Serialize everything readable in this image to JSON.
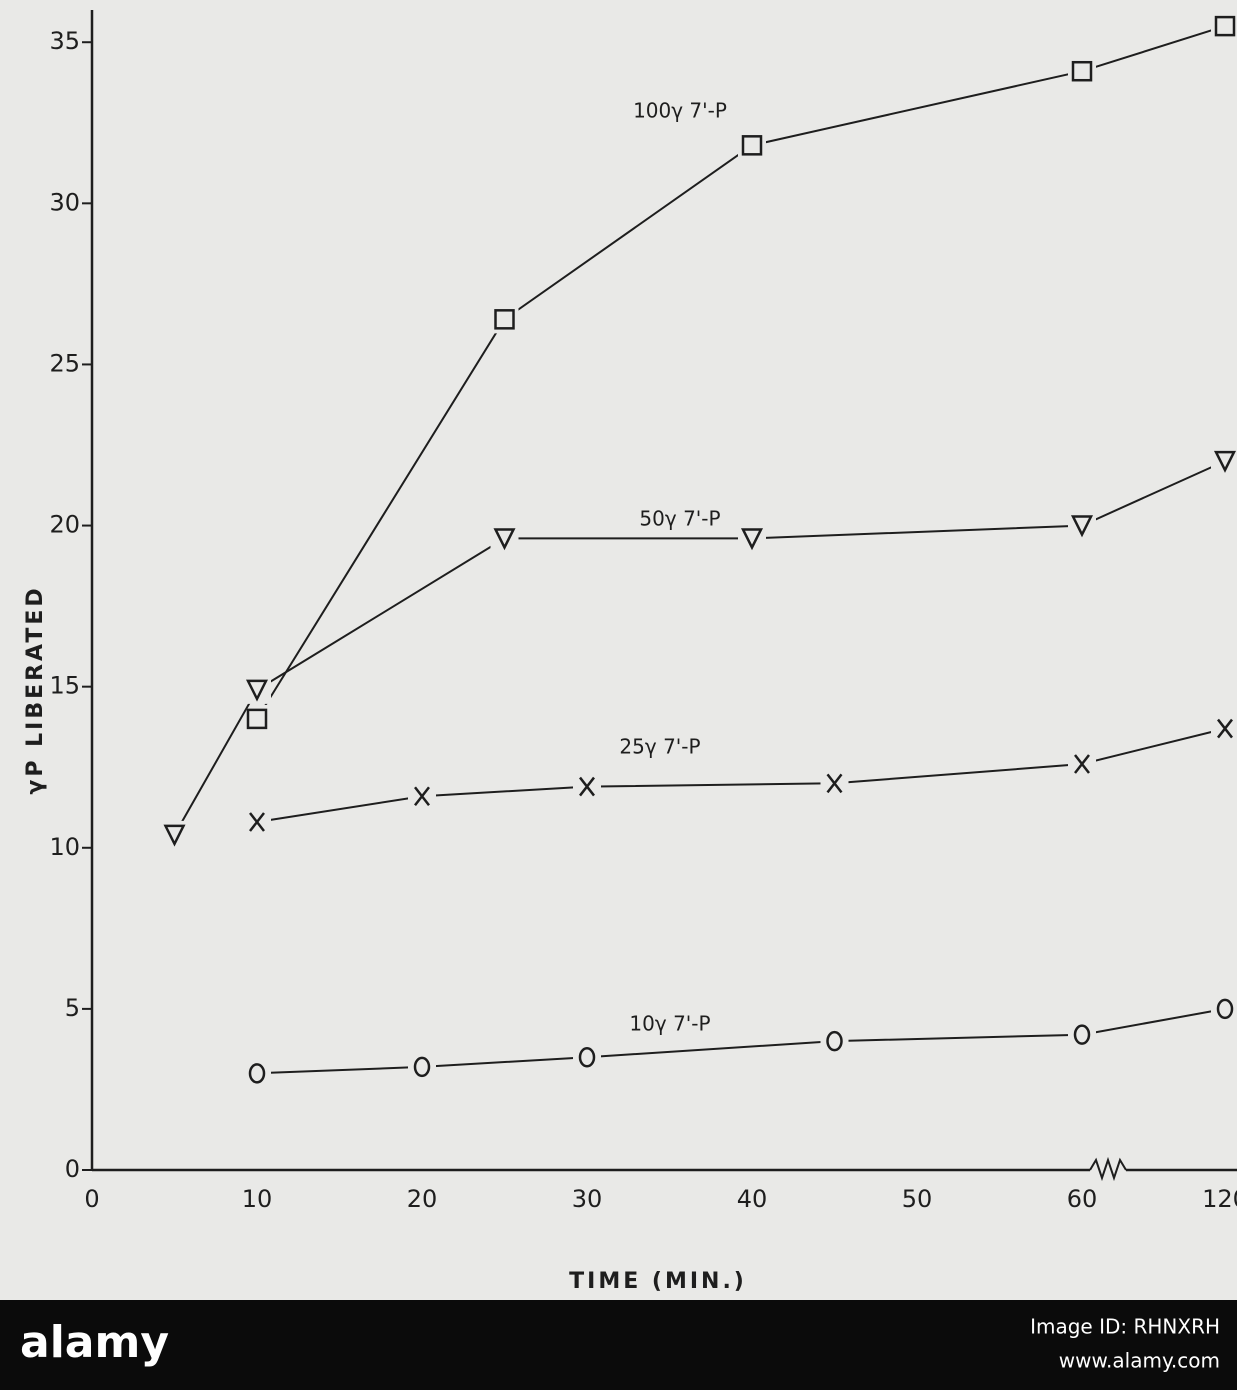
{
  "chart_data": {
    "type": "line",
    "x_label": "TIME (MIN.)",
    "y_label": "γP LIBERATED",
    "xlim": [
      0,
      120
    ],
    "xticks": [
      0,
      10,
      20,
      30,
      40,
      50,
      60,
      120
    ],
    "axis_break": true,
    "ylim": [
      0,
      36
    ],
    "yticks": [
      0,
      5,
      10,
      15,
      20,
      25,
      30,
      35
    ],
    "grid": false,
    "series": [
      {
        "name": "100γ 7'-P",
        "color": "#1e1e1e",
        "marker": "square",
        "x": [
          10,
          25,
          40,
          60,
          120
        ],
        "values": [
          14.0,
          26.4,
          31.8,
          34.1,
          35.5
        ]
      },
      {
        "name": "50γ 7'-P",
        "color": "#1e1e1e",
        "marker": "triangle",
        "x": [
          5,
          10,
          25,
          40,
          60,
          120
        ],
        "values": [
          10.4,
          14.9,
          19.6,
          19.6,
          20.0,
          22.0
        ]
      },
      {
        "name": "25γ 7'-P",
        "color": "#1e1e1e",
        "marker": "x",
        "x": [
          10,
          20,
          30,
          45,
          60,
          120
        ],
        "values": [
          10.8,
          11.6,
          11.9,
          12.0,
          12.6,
          13.7
        ]
      },
      {
        "name": "10γ 7'-P",
        "color": "#1e1e1e",
        "marker": "circle",
        "x": [
          10,
          20,
          30,
          45,
          60,
          120
        ],
        "values": [
          3.0,
          3.2,
          3.5,
          4.0,
          4.2,
          5.0
        ]
      }
    ]
  },
  "watermark": {
    "brand": "alamy",
    "image_id": "Image ID: RHNXRH",
    "site": "www.alamy.com"
  }
}
